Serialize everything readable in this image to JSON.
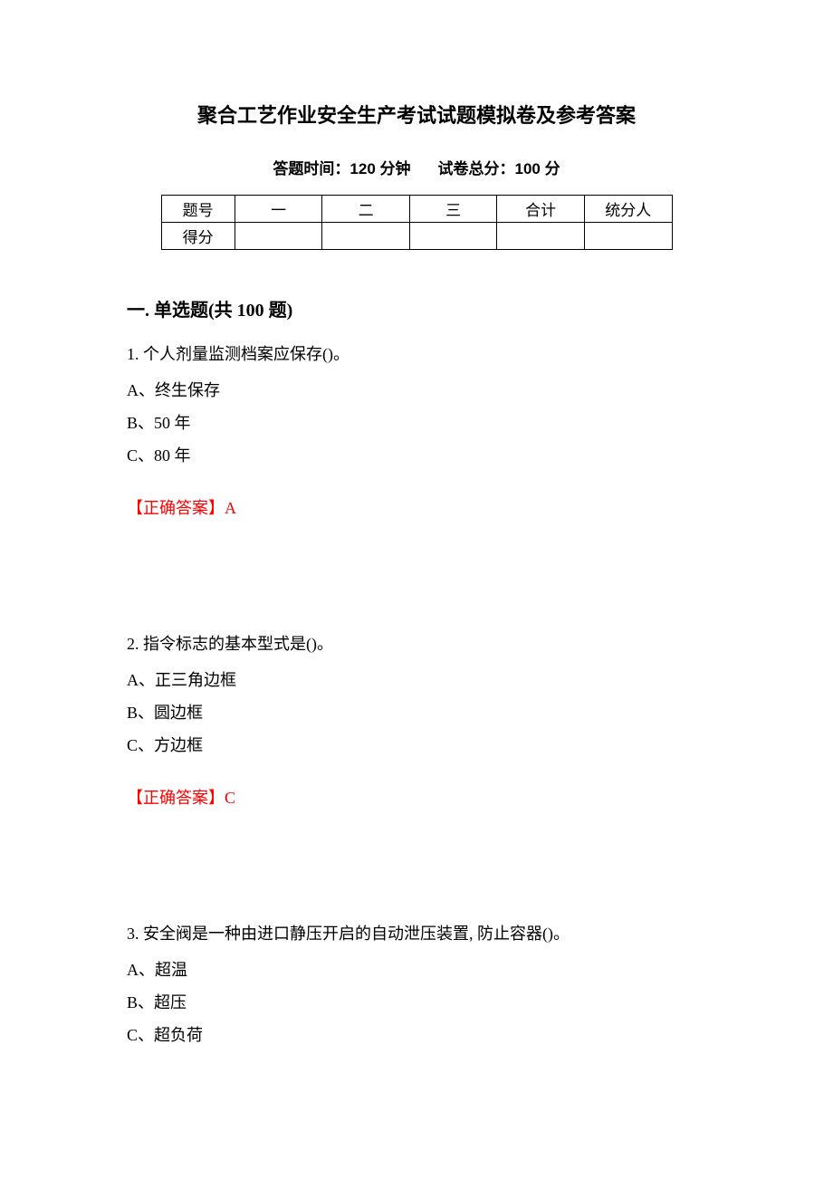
{
  "document": {
    "title": "聚合工艺作业安全生产考试试题模拟卷及参考答案",
    "meta": {
      "time_label": "答题时间：",
      "time_value": "120 分钟",
      "score_label": "试卷总分：",
      "score_value": "100 分"
    },
    "score_table": {
      "row1_label": "题号",
      "cols": [
        "一",
        "二",
        "三",
        "合计",
        "统分人"
      ],
      "row2_label": "得分"
    },
    "section_heading": "一. 单选题(共 100 题)",
    "questions": [
      {
        "stem": "1. 个人剂量监测档案应保存()。",
        "options": [
          "A、终生保存",
          "B、50 年",
          "C、80 年"
        ],
        "answer_label": "【正确答案】",
        "answer_value": "A"
      },
      {
        "stem": "2. 指令标志的基本型式是()。",
        "options": [
          "A、正三角边框",
          "B、圆边框",
          "C、方边框"
        ],
        "answer_label": "【正确答案】",
        "answer_value": "C"
      },
      {
        "stem": "3. 安全阀是一种由进口静压开启的自动泄压装置, 防止容器()。",
        "options": [
          "A、超温",
          "B、超压",
          "C、超负荷"
        ],
        "answer_label": "",
        "answer_value": ""
      }
    ]
  },
  "style": {
    "text_color": "#000000",
    "answer_color": "#ff0000",
    "background_color": "#ffffff",
    "title_fontsize": 22,
    "body_fontsize": 18,
    "line_height": 2.0
  }
}
